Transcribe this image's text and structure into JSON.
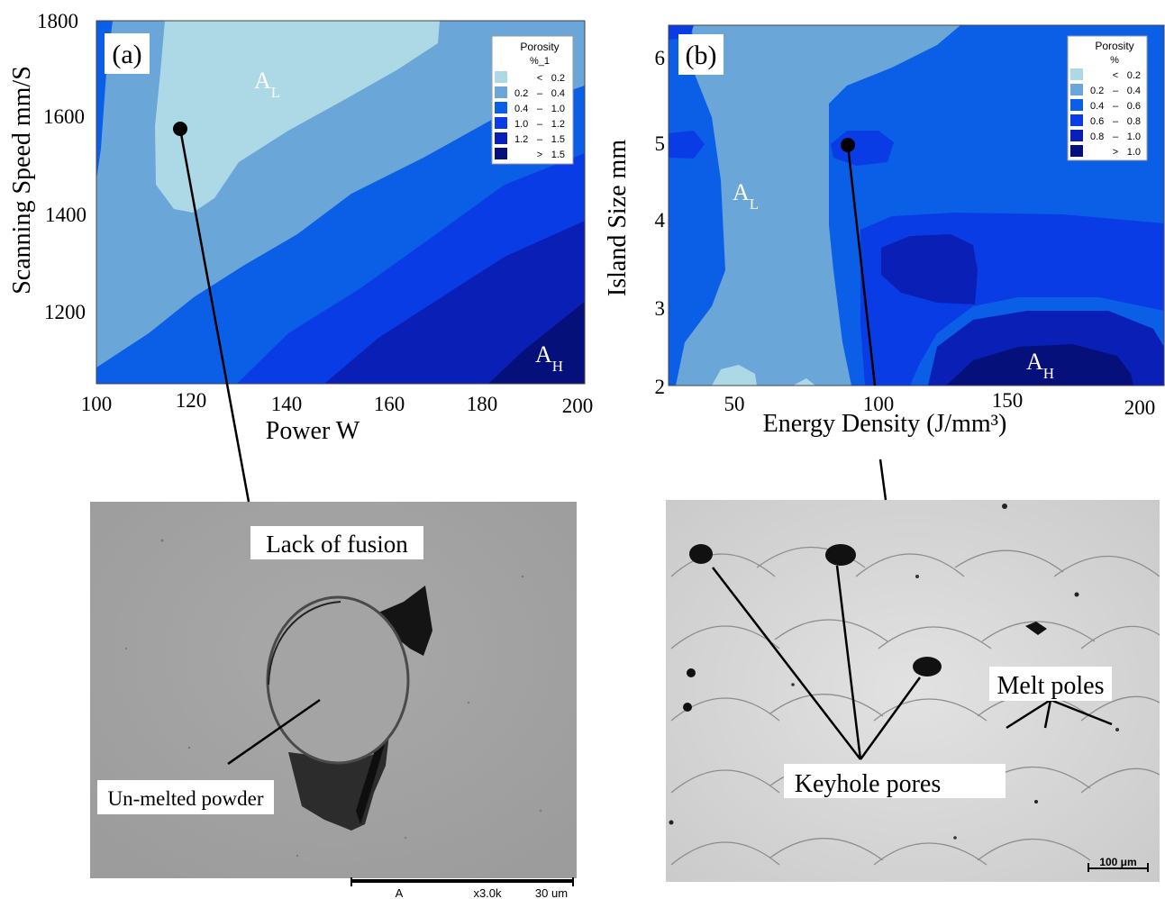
{
  "panel_a": {
    "label": "(a)",
    "xlabel": "Power W",
    "ylabel": "Scanning Speed mm/S",
    "x_ticks": [
      "100",
      "120",
      "140",
      "160",
      "180",
      "200"
    ],
    "y_ticks": [
      "1800",
      "1600",
      "1400",
      "1200"
    ],
    "region_low": {
      "main": "A",
      "sub": "L"
    },
    "region_high": {
      "main": "A",
      "sub": "H"
    },
    "legend": {
      "title_line1": "Porosity",
      "title_line2": "%_1",
      "colors": [
        "#add8e6",
        "#6aa6d8",
        "#0b5ee6",
        "#0a3ce6",
        "#0a1fb6",
        "#06107a"
      ],
      "items": [
        {
          "op": "<",
          "lo": "",
          "hi": "0.2"
        },
        {
          "op": "–",
          "lo": "0.2",
          "hi": "0.4"
        },
        {
          "op": "–",
          "lo": "0.4",
          "hi": "1.0"
        },
        {
          "op": "–",
          "lo": "1.0",
          "hi": "1.2"
        },
        {
          "op": "–",
          "lo": "1.2",
          "hi": "1.5"
        },
        {
          "op": ">",
          "lo": "",
          "hi": "1.5"
        }
      ]
    }
  },
  "panel_b": {
    "label": "(b)",
    "xlabel": "Energy Density (J/mm³)",
    "ylabel": "Island Size mm",
    "x_ticks": [
      "50",
      "100",
      "150",
      "200"
    ],
    "y_ticks": [
      "6",
      "5",
      "4",
      "3",
      "2"
    ],
    "region_low": {
      "main": "A",
      "sub": "L"
    },
    "region_high": {
      "main": "A",
      "sub": "H"
    },
    "legend": {
      "title_line1": "Porosity",
      "title_line2": "%",
      "colors": [
        "#add8e6",
        "#6aa6d8",
        "#0b5ee6",
        "#0a3ce6",
        "#0a1fb6",
        "#06107a"
      ],
      "items": [
        {
          "op": "<",
          "lo": "",
          "hi": "0.2"
        },
        {
          "op": "–",
          "lo": "0.2",
          "hi": "0.4"
        },
        {
          "op": "–",
          "lo": "0.4",
          "hi": "0.6"
        },
        {
          "op": "–",
          "lo": "0.6",
          "hi": "0.8"
        },
        {
          "op": "–",
          "lo": "0.8",
          "hi": "1.0"
        },
        {
          "op": ">",
          "lo": "",
          "hi": "1.0"
        }
      ]
    }
  },
  "micrograph_a": {
    "label_top": "Lack of fusion",
    "label_bottom": "Un-melted powder",
    "scalebar_text_a": "A",
    "scalebar_text_b": "x3.0k",
    "scalebar_text_c": "30 um"
  },
  "micrograph_b": {
    "label_pores": "Keyhole pores",
    "label_melt": "Melt poles",
    "scalebar_text": "100 μm"
  },
  "chart_data": [
    {
      "type": "heatmap",
      "title": "",
      "xlabel": "Power W",
      "ylabel": "Scanning Speed mm/S",
      "xlim": [
        100,
        200
      ],
      "ylim": [
        1050,
        1800
      ],
      "legend": "top-right",
      "legend_title": "Porosity %_1",
      "levels": [
        "< 0.2",
        "0.2 – 0.4",
        "0.4 – 1.0",
        "1.0 – 1.2",
        "1.2 – 1.5",
        "> 1.5"
      ],
      "regions": [
        "A_L",
        "A_H"
      ],
      "marked_point": {
        "x": 117,
        "y": 1580
      }
    },
    {
      "type": "heatmap",
      "title": "",
      "xlabel": "Energy Density (J/mm³)",
      "ylabel": "Island Size mm",
      "xlim": [
        30,
        210
      ],
      "ylim": [
        2,
        6.5
      ],
      "legend": "top-right",
      "legend_title": "Porosity %",
      "levels": [
        "< 0.2",
        "0.2 – 0.4",
        "0.4 – 0.6",
        "0.6 – 0.8",
        "0.8 – 1.0",
        "> 1.0"
      ],
      "regions": [
        "A_L",
        "A_H"
      ],
      "marked_point": {
        "x": 90,
        "y": 5
      }
    }
  ]
}
